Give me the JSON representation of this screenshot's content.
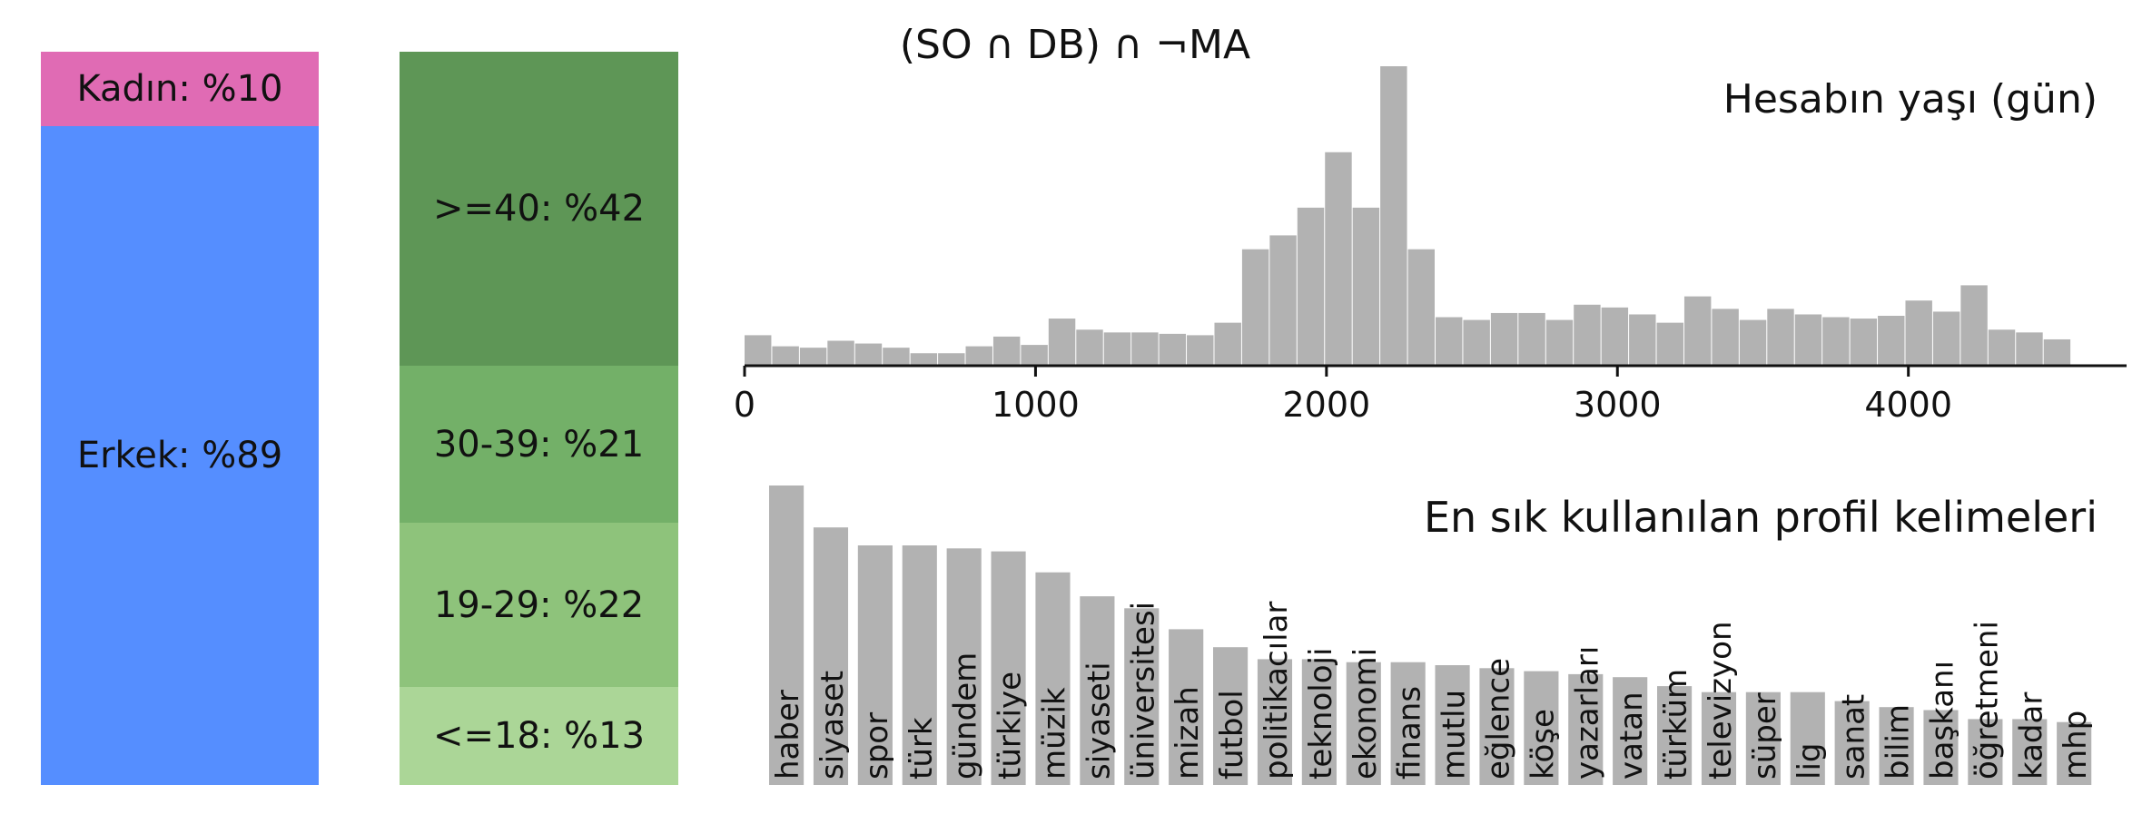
{
  "main_title": "(SO ∩ DB) ∩ ¬MA",
  "gender": {
    "segments": [
      {
        "label": "Kadın: %10",
        "share": 10,
        "color": "#e06bb4"
      },
      {
        "label": "Erkek: %89",
        "share": 89,
        "color": "#558eff"
      }
    ]
  },
  "age": {
    "segments": [
      {
        "label": ">=40: %42",
        "share": 42,
        "color": "#5e9656"
      },
      {
        "label": "30-39: %21",
        "share": 21,
        "color": "#73b068"
      },
      {
        "label": "19-29: %22",
        "share": 22,
        "color": "#8ec37b"
      },
      {
        "label": "<=18: %13",
        "share": 13,
        "color": "#abd697"
      }
    ]
  },
  "chart_data": [
    {
      "type": "bar",
      "title": "Hesabın yaşı (gün)",
      "xlim": [
        0,
        4750
      ],
      "xticks": [
        "0",
        "1000",
        "2000",
        "3000",
        "4000"
      ],
      "xtick_values": [
        0,
        1000,
        2000,
        3000,
        4000
      ],
      "bin_width": 95,
      "values": [
        22,
        14,
        13,
        18,
        16,
        13,
        9,
        9,
        14,
        21,
        15,
        34,
        26,
        24,
        24,
        23,
        22,
        31,
        84,
        94,
        114,
        154,
        114,
        216,
        84,
        35,
        33,
        38,
        38,
        33,
        44,
        42,
        37,
        31,
        50,
        41,
        33,
        41,
        37,
        35,
        34,
        36,
        47,
        39,
        58,
        26,
        24,
        19
      ],
      "color": "#b2b2b2",
      "grid": false
    },
    {
      "type": "bar",
      "title": "En sık kullanılan profil kelimeleri",
      "categories": [
        "haber",
        "siyaset",
        "spor",
        "türk",
        "gündem",
        "türkiye",
        "müzik",
        "siyaseti",
        "üniversitesi",
        "mizah",
        "futbol",
        "politikacılar",
        "teknoloji",
        "ekonomi",
        "finans",
        "mutlu",
        "eğlence",
        "köşe",
        "yazarları",
        "vatan",
        "türküm",
        "televizyon",
        "süper",
        "lig",
        "sanat",
        "bilim",
        "başkanı",
        "öğretmeni",
        "kadar",
        "mhp"
      ],
      "values": [
        100,
        86,
        80,
        80,
        79,
        78,
        71,
        63,
        59,
        52,
        46,
        42,
        42,
        41,
        41,
        40,
        39,
        38,
        37,
        36,
        33,
        31,
        31,
        31,
        28,
        26,
        25,
        22,
        22,
        21
      ],
      "color": "#b2b2b2",
      "grid": false
    }
  ]
}
